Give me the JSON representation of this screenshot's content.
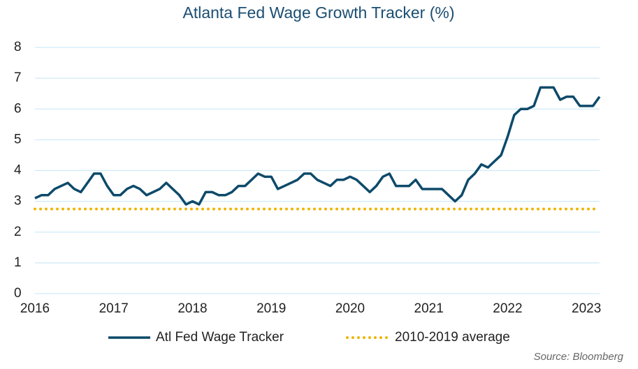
{
  "chart_data": {
    "type": "line",
    "title": "Atlanta Fed Wage Growth Tracker (%)",
    "source": "Source: Bloomberg",
    "xlim": [
      2016,
      2023.167
    ],
    "xticks": [
      2016,
      2017,
      2018,
      2019,
      2020,
      2021,
      2022,
      2023
    ],
    "ylim": [
      0,
      8
    ],
    "yticks": [
      0,
      1,
      2,
      3,
      4,
      5,
      6,
      7,
      8
    ],
    "grid": true,
    "legend": "bottom",
    "series": [
      {
        "name": "Atl Fed Wage Tracker",
        "color": "#0d4a6a",
        "style": "solid",
        "x": [
          2016,
          2016.083,
          2016.167,
          2016.25,
          2016.333,
          2016.417,
          2016.5,
          2016.583,
          2016.667,
          2016.75,
          2016.833,
          2016.917,
          2017,
          2017.083,
          2017.167,
          2017.25,
          2017.333,
          2017.417,
          2017.5,
          2017.583,
          2017.667,
          2017.75,
          2017.833,
          2017.917,
          2018,
          2018.083,
          2018.167,
          2018.25,
          2018.333,
          2018.417,
          2018.5,
          2018.583,
          2018.667,
          2018.75,
          2018.833,
          2018.917,
          2019,
          2019.083,
          2019.167,
          2019.25,
          2019.333,
          2019.417,
          2019.5,
          2019.583,
          2019.667,
          2019.75,
          2019.833,
          2019.917,
          2020,
          2020.083,
          2020.167,
          2020.25,
          2020.333,
          2020.417,
          2020.5,
          2020.583,
          2020.667,
          2020.75,
          2020.833,
          2020.917,
          2021,
          2021.083,
          2021.167,
          2021.25,
          2021.333,
          2021.417,
          2021.5,
          2021.583,
          2021.667,
          2021.75,
          2021.833,
          2021.917,
          2022,
          2022.083,
          2022.167,
          2022.25,
          2022.333,
          2022.417,
          2022.5,
          2022.583,
          2022.667,
          2022.75,
          2022.833,
          2022.917,
          2023,
          2023.083,
          2023.167
        ],
        "values": [
          3.1,
          3.2,
          3.2,
          3.4,
          3.5,
          3.6,
          3.4,
          3.3,
          3.6,
          3.9,
          3.9,
          3.5,
          3.2,
          3.2,
          3.4,
          3.5,
          3.4,
          3.2,
          3.3,
          3.4,
          3.6,
          3.4,
          3.2,
          2.9,
          3.0,
          2.9,
          3.3,
          3.3,
          3.2,
          3.2,
          3.3,
          3.5,
          3.5,
          3.7,
          3.9,
          3.8,
          3.8,
          3.4,
          3.5,
          3.6,
          3.7,
          3.9,
          3.9,
          3.7,
          3.6,
          3.5,
          3.7,
          3.7,
          3.8,
          3.7,
          3.5,
          3.3,
          3.5,
          3.8,
          3.9,
          3.5,
          3.5,
          3.5,
          3.7,
          3.4,
          3.4,
          3.4,
          3.4,
          3.2,
          3.0,
          3.2,
          3.7,
          3.9,
          4.2,
          4.1,
          4.3,
          4.5,
          5.1,
          5.8,
          6.0,
          6.0,
          6.1,
          6.7,
          6.7,
          6.7,
          6.3,
          6.4,
          6.4,
          6.1,
          6.1,
          6.1,
          6.4
        ]
      },
      {
        "name": "2010-2019 average",
        "color": "#f0b400",
        "style": "dotted",
        "x": [
          2016,
          2023.167
        ],
        "values": [
          2.75,
          2.75
        ]
      }
    ]
  }
}
